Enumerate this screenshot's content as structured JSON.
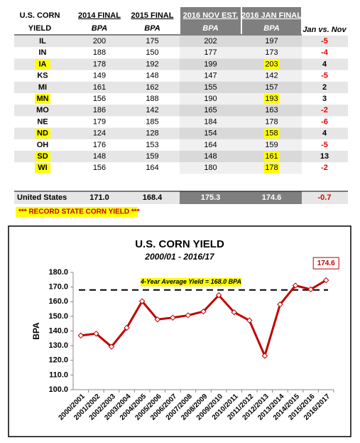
{
  "table": {
    "header": [
      [
        "U.S. CORN",
        "YIELD"
      ],
      [
        "2014 FINAL",
        "BPA"
      ],
      [
        "2015 FINAL",
        "BPA"
      ],
      [
        "2016 NOV EST.",
        "BPA"
      ],
      [
        "2016 JAN FINAL",
        "BPA"
      ],
      [
        "Jan vs. Nov"
      ]
    ],
    "rows": [
      {
        "cells": [
          "IL",
          "200",
          "175",
          "202",
          "197",
          "-5"
        ],
        "record": false
      },
      {
        "cells": [
          "IN",
          "188",
          "150",
          "177",
          "173",
          "-4"
        ],
        "record": false
      },
      {
        "cells": [
          "IA",
          "178",
          "192",
          "199",
          "203",
          "4"
        ],
        "record": true
      },
      {
        "cells": [
          "KS",
          "149",
          "148",
          "147",
          "142",
          "-5"
        ],
        "record": false
      },
      {
        "cells": [
          "MI",
          "161",
          "162",
          "155",
          "157",
          "2"
        ],
        "record": false
      },
      {
        "cells": [
          "MN",
          "156",
          "188",
          "190",
          "193",
          "3"
        ],
        "record": true
      },
      {
        "cells": [
          "MO",
          "186",
          "142",
          "165",
          "163",
          "-2"
        ],
        "record": false
      },
      {
        "cells": [
          "NE",
          "179",
          "185",
          "184",
          "178",
          "-6"
        ],
        "record": false
      },
      {
        "cells": [
          "ND",
          "124",
          "128",
          "154",
          "158",
          "4"
        ],
        "record": true
      },
      {
        "cells": [
          "OH",
          "176",
          "153",
          "164",
          "159",
          "-5"
        ],
        "record": false
      },
      {
        "cells": [
          "SD",
          "148",
          "159",
          "148",
          "161",
          "13"
        ],
        "record": true
      },
      {
        "cells": [
          "WI",
          "156",
          "164",
          "180",
          "178",
          "-2"
        ],
        "record": true
      }
    ],
    "total": {
      "cells": [
        "United States",
        "171.0",
        "168.4",
        "175.3",
        "174.6",
        "-0.7"
      ]
    },
    "note": "*** RECORD STATE CORN YIELD ***"
  },
  "chart_data": {
    "type": "line",
    "title": "U.S. CORN YIELD",
    "subtitle": "2000/01 - 2016/17",
    "y_label": "BPA",
    "categories": [
      "2000/2001",
      "2001/2002",
      "2002/2003",
      "2003/2004",
      "2004/2005",
      "2005/2006",
      "2006/2007",
      "2007/2008",
      "2008/2009",
      "2009/2010",
      "2010/2011",
      "2011/2012",
      "2012/2013",
      "2013/2014",
      "2014/2015",
      "2015/2016",
      "2016/2017"
    ],
    "series": [
      {
        "name": "U.S. Corn Yield",
        "color": "#c00000",
        "values": [
          136.9,
          138.2,
          129.3,
          142.2,
          160.3,
          147.9,
          149.1,
          150.7,
          153.3,
          164.4,
          152.8,
          147.2,
          123.1,
          158.1,
          171.0,
          168.4,
          174.6
        ]
      }
    ],
    "label_last": true,
    "reference_line": {
      "value": 168.0,
      "label": "4-Year Average Yield = 168.0 BPA"
    },
    "ylim": [
      100,
      180
    ],
    "yticks": [
      {
        "value": 100,
        "label": "100.0"
      },
      {
        "value": 110,
        "label": "110.0"
      },
      {
        "value": 120,
        "label": "120.0"
      },
      {
        "value": 130,
        "label": "130.0"
      },
      {
        "value": 140,
        "label": "140.0"
      },
      {
        "value": 150,
        "label": "150.0"
      },
      {
        "value": 160,
        "label": "160.0"
      },
      {
        "value": 170,
        "label": "170.0"
      },
      {
        "value": 180,
        "label": "180.0"
      }
    ]
  }
}
